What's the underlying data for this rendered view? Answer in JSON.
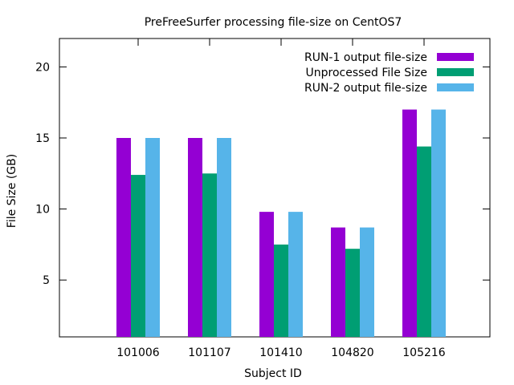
{
  "chart_data": {
    "type": "bar",
    "title": "PreFreeSurfer processing file-size on CentOS7",
    "xlabel": "Subject ID",
    "ylabel": "File Size (GB)",
    "ylim": [
      1,
      22
    ],
    "yticks": [
      5,
      10,
      15,
      20
    ],
    "categories": [
      "101006",
      "101107",
      "101410",
      "104820",
      "105216"
    ],
    "series": [
      {
        "name": "RUN-1 output file-size",
        "color": "#9400d3",
        "values": [
          15.0,
          15.0,
          9.8,
          8.7,
          17.0
        ]
      },
      {
        "name": "Unprocessed File Size",
        "color": "#009e73",
        "values": [
          12.4,
          12.5,
          7.5,
          7.2,
          14.4
        ]
      },
      {
        "name": "RUN-2 output file-size",
        "color": "#56b4e9",
        "values": [
          15.0,
          15.0,
          9.8,
          8.7,
          17.0
        ]
      }
    ],
    "legend_position": "top-right",
    "grid": false
  }
}
